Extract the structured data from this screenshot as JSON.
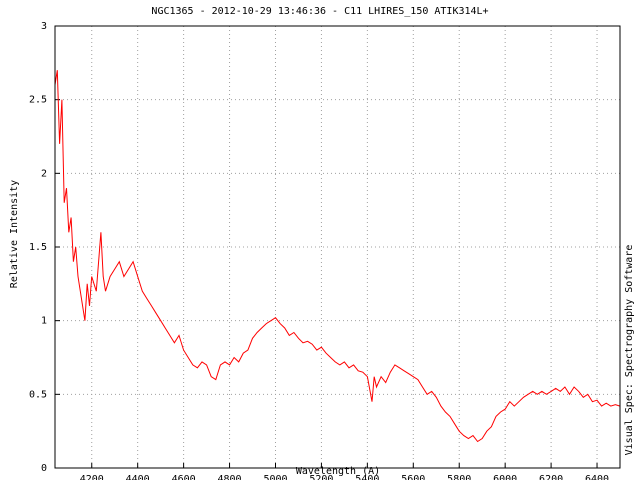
{
  "chart_data": {
    "type": "line",
    "title": "NGC1365 - 2012-10-29 13:46:36 - C11 LHIRES_150 ATIK314L+",
    "xlabel": "Wavelength (A)",
    "ylabel": "Relative Intensity",
    "annotation": "Visual Spec: Spectrography Software",
    "color": "#ff0000",
    "grid": true,
    "xlim": [
      4040,
      6500
    ],
    "ylim": [
      0,
      3
    ],
    "xticks": [
      4200,
      4400,
      4600,
      4800,
      5000,
      5200,
      5400,
      5600,
      5800,
      6000,
      6200,
      6400
    ],
    "yticks": [
      0,
      0.5,
      1,
      1.5,
      2,
      2.5,
      3
    ],
    "x": [
      4040,
      4050,
      4060,
      4070,
      4080,
      4090,
      4100,
      4110,
      4120,
      4130,
      4140,
      4150,
      4160,
      4170,
      4180,
      4190,
      4200,
      4220,
      4240,
      4250,
      4260,
      4280,
      4300,
      4320,
      4340,
      4360,
      4380,
      4400,
      4420,
      4440,
      4460,
      4480,
      4500,
      4520,
      4540,
      4560,
      4580,
      4600,
      4620,
      4640,
      4660,
      4680,
      4700,
      4720,
      4740,
      4760,
      4780,
      4800,
      4820,
      4840,
      4860,
      4880,
      4900,
      4920,
      4940,
      4960,
      4980,
      5000,
      5020,
      5040,
      5060,
      5080,
      5100,
      5120,
      5140,
      5160,
      5180,
      5200,
      5220,
      5240,
      5260,
      5280,
      5300,
      5320,
      5340,
      5360,
      5380,
      5400,
      5420,
      5430,
      5440,
      5460,
      5480,
      5500,
      5520,
      5540,
      5560,
      5580,
      5600,
      5620,
      5640,
      5660,
      5680,
      5700,
      5720,
      5740,
      5760,
      5780,
      5800,
      5820,
      5840,
      5860,
      5880,
      5900,
      5920,
      5940,
      5960,
      5980,
      6000,
      6020,
      6040,
      6060,
      6080,
      6100,
      6120,
      6140,
      6160,
      6180,
      6200,
      6220,
      6240,
      6260,
      6280,
      6300,
      6320,
      6340,
      6360,
      6380,
      6400,
      6420,
      6440,
      6460,
      6480,
      6500
    ],
    "values": [
      2.6,
      2.7,
      2.2,
      2.5,
      1.8,
      1.9,
      1.6,
      1.7,
      1.4,
      1.5,
      1.3,
      1.2,
      1.1,
      1.0,
      1.25,
      1.1,
      1.3,
      1.2,
      1.6,
      1.3,
      1.2,
      1.3,
      1.35,
      1.4,
      1.3,
      1.35,
      1.4,
      1.3,
      1.2,
      1.15,
      1.1,
      1.05,
      1.0,
      0.95,
      0.9,
      0.85,
      0.9,
      0.8,
      0.75,
      0.7,
      0.68,
      0.72,
      0.7,
      0.62,
      0.6,
      0.7,
      0.72,
      0.7,
      0.75,
      0.72,
      0.78,
      0.8,
      0.88,
      0.92,
      0.95,
      0.98,
      1.0,
      1.02,
      0.98,
      0.95,
      0.9,
      0.92,
      0.88,
      0.85,
      0.86,
      0.84,
      0.8,
      0.82,
      0.78,
      0.75,
      0.72,
      0.7,
      0.72,
      0.68,
      0.7,
      0.66,
      0.65,
      0.62,
      0.45,
      0.62,
      0.55,
      0.62,
      0.58,
      0.65,
      0.7,
      0.68,
      0.66,
      0.64,
      0.62,
      0.6,
      0.55,
      0.5,
      0.52,
      0.48,
      0.42,
      0.38,
      0.35,
      0.3,
      0.25,
      0.22,
      0.2,
      0.22,
      0.18,
      0.2,
      0.25,
      0.28,
      0.35,
      0.38,
      0.4,
      0.45,
      0.42,
      0.45,
      0.48,
      0.5,
      0.52,
      0.5,
      0.52,
      0.5,
      0.52,
      0.54,
      0.52,
      0.55,
      0.5,
      0.55,
      0.52,
      0.48,
      0.5,
      0.45,
      0.46,
      0.42,
      0.44,
      0.42,
      0.43,
      0.42
    ]
  }
}
